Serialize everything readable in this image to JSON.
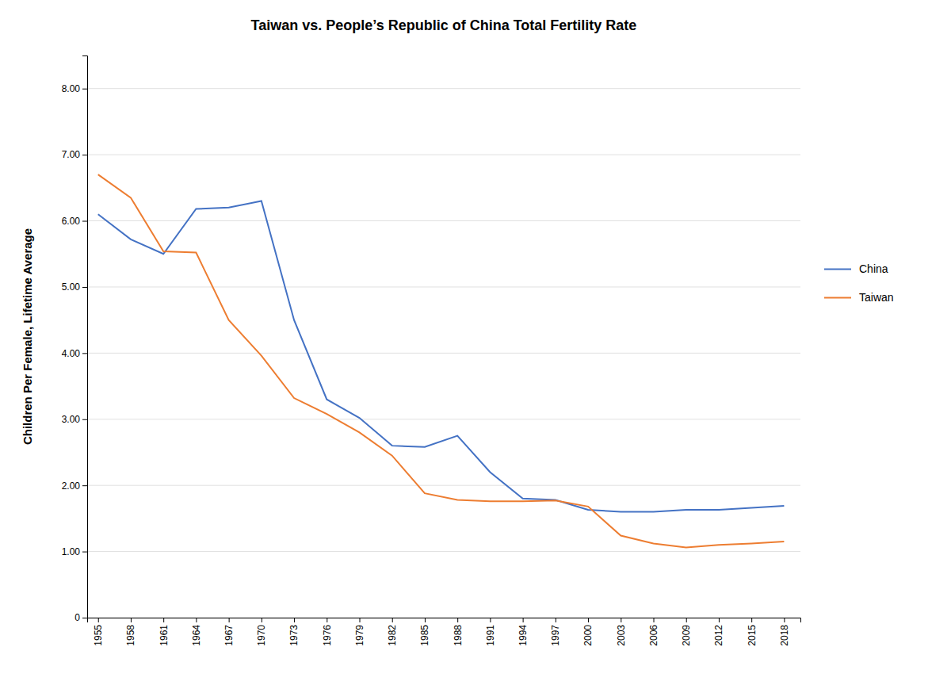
{
  "chart_data": {
    "type": "line",
    "title": "Taiwan vs. People’s Republic of China Total Fertility Rate",
    "ylabel": "Children Per Female, Lifetime Average",
    "x": [
      1955,
      1958,
      1961,
      1964,
      1967,
      1970,
      1973,
      1976,
      1979,
      1982,
      1985,
      1988,
      1991,
      1994,
      1997,
      2000,
      2003,
      2006,
      2009,
      2012,
      2015,
      2018
    ],
    "series": [
      {
        "name": "China",
        "color": "#4472C4",
        "values": [
          6.1,
          5.72,
          5.5,
          6.18,
          6.2,
          6.3,
          4.5,
          3.3,
          3.02,
          2.6,
          2.58,
          2.75,
          2.2,
          1.8,
          1.78,
          1.63,
          1.6,
          1.6,
          1.63,
          1.63,
          1.66,
          1.69
        ]
      },
      {
        "name": "Taiwan",
        "color": "#ED7D31",
        "values": [
          6.7,
          6.35,
          5.54,
          5.52,
          4.5,
          3.96,
          3.32,
          3.08,
          2.8,
          2.45,
          1.88,
          1.78,
          1.76,
          1.76,
          1.77,
          1.68,
          1.24,
          1.12,
          1.06,
          1.1,
          1.12,
          1.15
        ]
      }
    ],
    "xlim": [
      1954,
      2019.5
    ],
    "xticks": [
      1955,
      1958,
      1961,
      1964,
      1967,
      1970,
      1973,
      1976,
      1979,
      1982,
      1985,
      1988,
      1991,
      1994,
      1997,
      2000,
      2003,
      2006,
      2009,
      2012,
      2015,
      2018
    ],
    "ylim": [
      0,
      8.5
    ],
    "yticks": [
      0,
      {
        "value": 1,
        "label": "1.00"
      },
      {
        "value": 2,
        "label": "2.00"
      },
      {
        "value": 3,
        "label": "3.00"
      },
      {
        "value": 4,
        "label": "4.00"
      },
      {
        "value": 5,
        "label": "5.00"
      },
      {
        "value": 6,
        "label": "6.00"
      },
      {
        "value": 7,
        "label": "7.00"
      },
      {
        "value": 8,
        "label": "8.00"
      }
    ],
    "grid": "y",
    "legend": "right"
  }
}
